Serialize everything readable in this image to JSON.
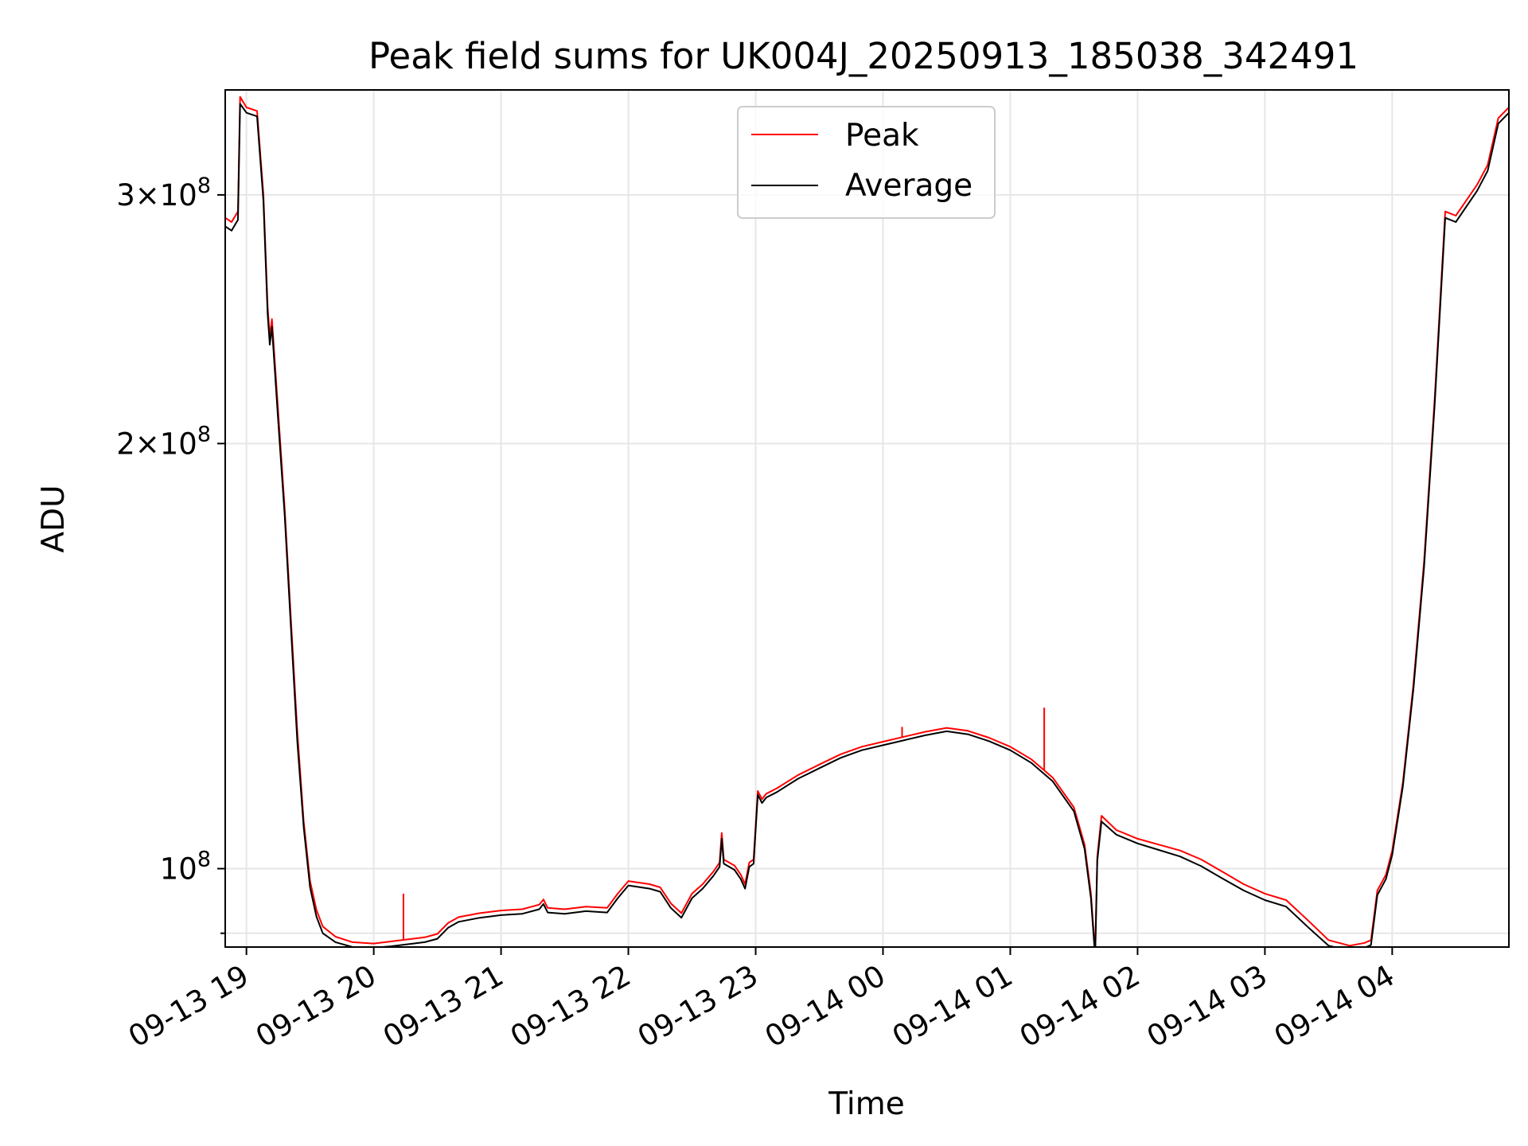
{
  "chart_data": {
    "type": "line",
    "title": "Peak field sums for UK004J_20250913_185038_342491",
    "xlabel": "Time",
    "ylabel": "ADU",
    "yscale": "log",
    "xlim": [
      "2025-09-13 18:50",
      "2025-09-14 04:55"
    ],
    "ylim": [
      88000000,
      356000000
    ],
    "grid": true,
    "legend_position": "top-center",
    "x_tick_labels": [
      "09-13 19",
      "09-13 20",
      "09-13 21",
      "09-13 22",
      "09-13 23",
      "09-14 00",
      "09-14 01",
      "09-14 02",
      "09-14 03",
      "09-14 04"
    ],
    "y_tick_labels": [
      {
        "value": 100000000,
        "mantissa": "",
        "exponent": "8",
        "base": "10"
      },
      {
        "value": 200000000,
        "mantissa": "2",
        "exponent": "8",
        "base": "10"
      },
      {
        "value": 300000000,
        "mantissa": "3",
        "exponent": "8",
        "base": "10"
      }
    ],
    "y_minor_ticks": [
      90000000
    ],
    "series": [
      {
        "name": "Peak",
        "color": "#ff0000",
        "points": [
          [
            "2025-09-13 18:50",
            289000000
          ],
          [
            "2025-09-13 18:53",
            287000000
          ],
          [
            "2025-09-13 18:56",
            292000000
          ],
          [
            "2025-09-13 18:57",
            352000000
          ],
          [
            "2025-09-13 19:00",
            346000000
          ],
          [
            "2025-09-13 19:05",
            344000000
          ],
          [
            "2025-09-13 19:08",
            300000000
          ],
          [
            "2025-09-13 19:10",
            250000000
          ],
          [
            "2025-09-13 19:11",
            238000000
          ],
          [
            "2025-09-13 19:12",
            245000000
          ],
          [
            "2025-09-13 19:15",
            210000000
          ],
          [
            "2025-09-13 19:18",
            180000000
          ],
          [
            "2025-09-13 19:21",
            150000000
          ],
          [
            "2025-09-13 19:24",
            125000000
          ],
          [
            "2025-09-13 19:27",
            108000000
          ],
          [
            "2025-09-13 19:30",
            98000000
          ],
          [
            "2025-09-13 19:33",
            93500000
          ],
          [
            "2025-09-13 19:36",
            91000000
          ],
          [
            "2025-09-13 19:42",
            89500000
          ],
          [
            "2025-09-13 19:50",
            88700000
          ],
          [
            "2025-09-13 20:00",
            88500000
          ],
          [
            "2025-09-13 20:08",
            88800000
          ],
          [
            "2025-09-13 20:16",
            89100000
          ],
          [
            "2025-09-13 20:24",
            89400000
          ],
          [
            "2025-09-13 20:30",
            89900000
          ],
          [
            "2025-09-13 20:35",
            91500000
          ],
          [
            "2025-09-13 20:40",
            92400000
          ],
          [
            "2025-09-13 20:50",
            93000000
          ],
          [
            "2025-09-13 21:00",
            93400000
          ],
          [
            "2025-09-13 21:10",
            93600000
          ],
          [
            "2025-09-13 21:18",
            94300000
          ],
          [
            "2025-09-13 21:20",
            95100000
          ],
          [
            "2025-09-13 21:22",
            93800000
          ],
          [
            "2025-09-13 21:30",
            93600000
          ],
          [
            "2025-09-13 21:40",
            94000000
          ],
          [
            "2025-09-13 21:50",
            93800000
          ],
          [
            "2025-09-13 21:55",
            96000000
          ],
          [
            "2025-09-13 22:00",
            98000000
          ],
          [
            "2025-09-13 22:10",
            97500000
          ],
          [
            "2025-09-13 22:15",
            97000000
          ],
          [
            "2025-09-13 22:20",
            94500000
          ],
          [
            "2025-09-13 22:25",
            93000000
          ],
          [
            "2025-09-13 22:30",
            96000000
          ],
          [
            "2025-09-13 22:35",
            97500000
          ],
          [
            "2025-09-13 22:40",
            99500000
          ],
          [
            "2025-09-13 22:43",
            101000000
          ],
          [
            "2025-09-13 22:44",
            106000000
          ],
          [
            "2025-09-13 22:45",
            101500000
          ],
          [
            "2025-09-13 22:50",
            100500000
          ],
          [
            "2025-09-13 22:53",
            99000000
          ],
          [
            "2025-09-13 22:55",
            97500000
          ],
          [
            "2025-09-13 22:57",
            101000000
          ],
          [
            "2025-09-13 22:59",
            101500000
          ],
          [
            "2025-09-13 23:01",
            113500000
          ],
          [
            "2025-09-13 23:03",
            112000000
          ],
          [
            "2025-09-13 23:05",
            113000000
          ],
          [
            "2025-09-13 23:10",
            114000000
          ],
          [
            "2025-09-13 23:20",
            116500000
          ],
          [
            "2025-09-13 23:30",
            118500000
          ],
          [
            "2025-09-13 23:40",
            120500000
          ],
          [
            "2025-09-13 23:50",
            122000000
          ],
          [
            "2025-09-14 00:00",
            123000000
          ],
          [
            "2025-09-14 00:10",
            124000000
          ],
          [
            "2025-09-14 00:20",
            125000000
          ],
          [
            "2025-09-14 00:30",
            125800000
          ],
          [
            "2025-09-14 00:40",
            125200000
          ],
          [
            "2025-09-14 00:50",
            123800000
          ],
          [
            "2025-09-14 01:00",
            122000000
          ],
          [
            "2025-09-14 01:10",
            119500000
          ],
          [
            "2025-09-14 01:20",
            116000000
          ],
          [
            "2025-09-14 01:30",
            110500000
          ],
          [
            "2025-09-14 01:35",
            104000000
          ],
          [
            "2025-09-14 01:38",
            96000000
          ],
          [
            "2025-09-14 01:40",
            87200000
          ],
          [
            "2025-09-14 01:41",
            102000000
          ],
          [
            "2025-09-14 01:43",
            109000000
          ],
          [
            "2025-09-14 01:50",
            106500000
          ],
          [
            "2025-09-14 02:00",
            105000000
          ],
          [
            "2025-09-14 02:10",
            104000000
          ],
          [
            "2025-09-14 02:20",
            103000000
          ],
          [
            "2025-09-14 02:30",
            101500000
          ],
          [
            "2025-09-14 02:40",
            99500000
          ],
          [
            "2025-09-14 02:50",
            97500000
          ],
          [
            "2025-09-14 03:00",
            96000000
          ],
          [
            "2025-09-14 03:10",
            95000000
          ],
          [
            "2025-09-14 03:20",
            92000000
          ],
          [
            "2025-09-14 03:30",
            89000000
          ],
          [
            "2025-09-14 03:40",
            88200000
          ],
          [
            "2025-09-14 03:47",
            88600000
          ],
          [
            "2025-09-14 03:50",
            89000000
          ],
          [
            "2025-09-14 03:53",
            96500000
          ],
          [
            "2025-09-14 03:57",
            99000000
          ],
          [
            "2025-09-14 04:00",
            103000000
          ],
          [
            "2025-09-14 04:05",
            115000000
          ],
          [
            "2025-09-14 04:10",
            135000000
          ],
          [
            "2025-09-14 04:15",
            165000000
          ],
          [
            "2025-09-14 04:20",
            215000000
          ],
          [
            "2025-09-14 04:25",
            292000000
          ],
          [
            "2025-09-14 04:30",
            290000000
          ],
          [
            "2025-09-14 04:40",
            305000000
          ],
          [
            "2025-09-14 04:45",
            315000000
          ],
          [
            "2025-09-14 04:50",
            340000000
          ],
          [
            "2025-09-14 04:55",
            346000000
          ]
        ],
        "spikes": [
          [
            "2025-09-13 20:14",
            96000000
          ],
          [
            "2025-09-14 00:09",
            126000000
          ],
          [
            "2025-09-14 01:16",
            130000000
          ]
        ]
      },
      {
        "name": "Average",
        "color": "#000000",
        "points": [
          [
            "2025-09-13 18:50",
            285000000
          ],
          [
            "2025-09-13 18:53",
            283000000
          ],
          [
            "2025-09-13 18:56",
            288000000
          ],
          [
            "2025-09-13 18:57",
            348000000
          ],
          [
            "2025-09-13 19:00",
            343000000
          ],
          [
            "2025-09-13 19:05",
            341000000
          ],
          [
            "2025-09-13 19:08",
            297000000
          ],
          [
            "2025-09-13 19:10",
            247000000
          ],
          [
            "2025-09-13 19:11",
            235000000
          ],
          [
            "2025-09-13 19:12",
            242000000
          ],
          [
            "2025-09-13 19:15",
            207000000
          ],
          [
            "2025-09-13 19:18",
            178000000
          ],
          [
            "2025-09-13 19:21",
            148000000
          ],
          [
            "2025-09-13 19:24",
            123000000
          ],
          [
            "2025-09-13 19:27",
            107000000
          ],
          [
            "2025-09-13 19:30",
            97000000
          ],
          [
            "2025-09-13 19:33",
            92500000
          ],
          [
            "2025-09-13 19:36",
            90000000
          ],
          [
            "2025-09-13 19:42",
            88700000
          ],
          [
            "2025-09-13 19:50",
            88000000
          ],
          [
            "2025-09-13 20:00",
            87900000
          ],
          [
            "2025-09-13 20:08",
            88100000
          ],
          [
            "2025-09-13 20:16",
            88400000
          ],
          [
            "2025-09-13 20:24",
            88700000
          ],
          [
            "2025-09-13 20:30",
            89200000
          ],
          [
            "2025-09-13 20:35",
            90800000
          ],
          [
            "2025-09-13 20:40",
            91700000
          ],
          [
            "2025-09-13 20:50",
            92300000
          ],
          [
            "2025-09-13 21:00",
            92700000
          ],
          [
            "2025-09-13 21:10",
            92900000
          ],
          [
            "2025-09-13 21:18",
            93600000
          ],
          [
            "2025-09-13 21:20",
            94400000
          ],
          [
            "2025-09-13 21:22",
            93100000
          ],
          [
            "2025-09-13 21:30",
            92900000
          ],
          [
            "2025-09-13 21:40",
            93300000
          ],
          [
            "2025-09-13 21:50",
            93100000
          ],
          [
            "2025-09-13 21:55",
            95300000
          ],
          [
            "2025-09-13 22:00",
            97300000
          ],
          [
            "2025-09-13 22:10",
            96800000
          ],
          [
            "2025-09-13 22:15",
            96300000
          ],
          [
            "2025-09-13 22:20",
            93800000
          ],
          [
            "2025-09-13 22:25",
            92300000
          ],
          [
            "2025-09-13 22:30",
            95300000
          ],
          [
            "2025-09-13 22:35",
            96800000
          ],
          [
            "2025-09-13 22:40",
            98800000
          ],
          [
            "2025-09-13 22:43",
            100300000
          ],
          [
            "2025-09-13 22:44",
            105000000
          ],
          [
            "2025-09-13 22:45",
            100800000
          ],
          [
            "2025-09-13 22:50",
            99800000
          ],
          [
            "2025-09-13 22:53",
            98300000
          ],
          [
            "2025-09-13 22:55",
            96800000
          ],
          [
            "2025-09-13 22:57",
            100300000
          ],
          [
            "2025-09-13 22:59",
            100800000
          ],
          [
            "2025-09-13 23:01",
            112800000
          ],
          [
            "2025-09-13 23:03",
            111300000
          ],
          [
            "2025-09-13 23:05",
            112300000
          ],
          [
            "2025-09-13 23:10",
            113300000
          ],
          [
            "2025-09-13 23:20",
            115800000
          ],
          [
            "2025-09-13 23:30",
            117800000
          ],
          [
            "2025-09-13 23:40",
            119800000
          ],
          [
            "2025-09-13 23:50",
            121300000
          ],
          [
            "2025-09-14 00:00",
            122300000
          ],
          [
            "2025-09-14 00:10",
            123300000
          ],
          [
            "2025-09-14 00:20",
            124300000
          ],
          [
            "2025-09-14 00:30",
            125100000
          ],
          [
            "2025-09-14 00:40",
            124500000
          ],
          [
            "2025-09-14 00:50",
            123100000
          ],
          [
            "2025-09-14 01:00",
            121300000
          ],
          [
            "2025-09-14 01:10",
            118800000
          ],
          [
            "2025-09-14 01:20",
            115300000
          ],
          [
            "2025-09-14 01:30",
            109800000
          ],
          [
            "2025-09-14 01:35",
            103300000
          ],
          [
            "2025-09-14 01:38",
            95300000
          ],
          [
            "2025-09-14 01:40",
            86600000
          ],
          [
            "2025-09-14 01:41",
            101300000
          ],
          [
            "2025-09-14 01:43",
            108000000
          ],
          [
            "2025-09-14 01:50",
            105700000
          ],
          [
            "2025-09-14 02:00",
            104200000
          ],
          [
            "2025-09-14 02:10",
            103100000
          ],
          [
            "2025-09-14 02:20",
            102000000
          ],
          [
            "2025-09-14 02:30",
            100400000
          ],
          [
            "2025-09-14 02:40",
            98400000
          ],
          [
            "2025-09-14 02:50",
            96500000
          ],
          [
            "2025-09-14 03:00",
            95000000
          ],
          [
            "2025-09-14 03:10",
            94000000
          ],
          [
            "2025-09-14 03:20",
            91000000
          ],
          [
            "2025-09-14 03:30",
            88200000
          ],
          [
            "2025-09-14 03:40",
            87500000
          ],
          [
            "2025-09-14 03:47",
            87900000
          ],
          [
            "2025-09-14 03:50",
            88300000
          ],
          [
            "2025-09-14 03:53",
            95800000
          ],
          [
            "2025-09-14 03:57",
            98300000
          ],
          [
            "2025-09-14 04:00",
            102300000
          ],
          [
            "2025-09-14 04:05",
            114300000
          ],
          [
            "2025-09-14 04:10",
            134000000
          ],
          [
            "2025-09-14 04:15",
            163500000
          ],
          [
            "2025-09-14 04:20",
            213000000
          ],
          [
            "2025-09-14 04:25",
            289000000
          ],
          [
            "2025-09-14 04:30",
            287000000
          ],
          [
            "2025-09-14 04:40",
            302000000
          ],
          [
            "2025-09-14 04:45",
            312000000
          ],
          [
            "2025-09-14 04:50",
            337000000
          ],
          [
            "2025-09-14 04:55",
            343000000
          ]
        ]
      }
    ]
  }
}
